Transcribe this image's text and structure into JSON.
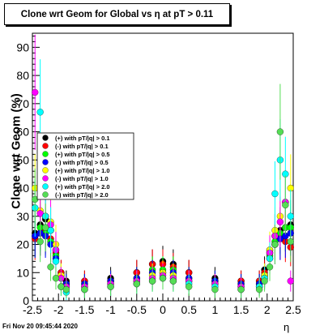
{
  "chart_data": {
    "type": "scatter",
    "title": "Clone wrt Geom for Global vs   η at pT > 0.11",
    "xlabel": "η",
    "ylabel": "Clone wrt Geom (%)",
    "xlim": [
      -2.5,
      2.5
    ],
    "ylim": [
      0,
      95
    ],
    "x_ticks": [
      "-2.5",
      "-2",
      "-1.5",
      "-1",
      "-0.5",
      "0",
      "0.5",
      "1",
      "1.5",
      "2",
      "2.5"
    ],
    "y_ticks": [
      "0",
      "10",
      "20",
      "30",
      "40",
      "50",
      "60",
      "70",
      "80",
      "90"
    ],
    "legend_position": "middle-left",
    "series": [
      {
        "name": "(+) with pT/|q| > 0.1",
        "color": "#000000",
        "x": [
          -2.45,
          -2.35,
          -2.25,
          -2.15,
          -2.05,
          -1.95,
          -1.85,
          -1.5,
          -1.0,
          -0.5,
          -0.2,
          0.0,
          0.2,
          0.5,
          1.0,
          1.5,
          1.85,
          1.95,
          2.05,
          2.15,
          2.25,
          2.35,
          2.45
        ],
        "y": [
          24,
          27,
          29,
          25,
          18,
          10,
          7,
          7,
          8,
          10,
          13,
          14,
          13,
          10,
          8,
          7,
          7,
          11,
          18,
          23,
          25,
          26,
          27
        ]
      },
      {
        "name": "(-) with pT/|q| > 0.1",
        "color": "#ff0000",
        "x": [
          -2.45,
          -2.35,
          -2.25,
          -2.15,
          -2.05,
          -1.95,
          -1.85,
          -1.5,
          -1.0,
          -0.5,
          -0.2,
          0.0,
          0.2,
          0.5,
          1.0,
          1.5,
          1.85,
          1.95,
          2.05,
          2.15,
          2.25,
          2.35,
          2.45
        ],
        "y": [
          22,
          24,
          25,
          22,
          17,
          10,
          6,
          7,
          7,
          10,
          13,
          13,
          12,
          10,
          7,
          7,
          7,
          10,
          17,
          20,
          22,
          21,
          19
        ]
      },
      {
        "name": "(+) with pT/|q| > 0.5",
        "color": "#00ff00",
        "x": [
          -2.45,
          -2.35,
          -2.25,
          -2.15,
          -2.05,
          -1.95,
          -1.85,
          -1.5,
          -1.0,
          -0.5,
          -0.2,
          0.0,
          0.2,
          0.5,
          1.0,
          1.5,
          1.85,
          1.95,
          2.05,
          2.15,
          2.25,
          2.35,
          2.45
        ],
        "y": [
          23,
          26,
          24,
          21,
          16,
          9,
          6,
          6,
          7,
          8,
          11,
          11,
          11,
          8,
          7,
          6,
          6,
          9,
          16,
          21,
          24,
          26,
          26
        ]
      },
      {
        "name": "(-) with pT/|q| > 0.5",
        "color": "#0000ff",
        "x": [
          -2.45,
          -2.35,
          -2.25,
          -2.15,
          -2.05,
          -1.95,
          -1.85,
          -1.5,
          -1.0,
          -0.5,
          -0.2,
          0.0,
          0.2,
          0.5,
          1.0,
          1.5,
          1.85,
          1.95,
          2.05,
          2.15,
          2.25,
          2.35,
          2.45
        ],
        "y": [
          23,
          24,
          23,
          20,
          15,
          8,
          6,
          6,
          7,
          8,
          10,
          10,
          10,
          8,
          7,
          6,
          6,
          9,
          15,
          20,
          22,
          23,
          24
        ]
      },
      {
        "name": "(+) with pT/|q| > 1.0",
        "color": "#ffff00",
        "x": [
          -2.45,
          -2.35,
          -2.25,
          -2.15,
          -2.05,
          -1.95,
          -1.85,
          -1.5,
          -1.0,
          -0.5,
          -0.2,
          0.0,
          0.2,
          0.5,
          1.0,
          1.5,
          1.85,
          1.95,
          2.05,
          2.15,
          2.25,
          2.35,
          2.45
        ],
        "y": [
          40,
          32,
          30,
          28,
          20,
          9,
          5,
          5,
          6,
          7,
          9,
          10,
          9,
          7,
          6,
          5,
          5,
          9,
          18,
          25,
          30,
          35,
          40
        ]
      },
      {
        "name": "(-) with pT/|q| > 1.0",
        "color": "#ff00ff",
        "x": [
          -2.45,
          -2.35,
          -2.25,
          -2.15,
          -2.05,
          -1.95,
          -1.85,
          -1.5,
          -1.0,
          -0.5,
          -0.2,
          0.0,
          0.2,
          0.5,
          1.0,
          1.5,
          1.85,
          1.95,
          2.05,
          2.15,
          2.25,
          2.35,
          2.45
        ],
        "y": [
          74,
          31,
          30,
          27,
          18,
          8,
          5,
          5,
          6,
          7,
          8,
          9,
          8,
          7,
          6,
          5,
          5,
          8,
          17,
          23,
          28,
          35,
          7
        ]
      },
      {
        "name": "(+) with pT/|q| > 2.0",
        "color": "#00ffff",
        "x": [
          -2.45,
          -2.35,
          -2.25,
          -2.15,
          -2.05,
          -1.95,
          -1.85,
          -1.5,
          -1.0,
          -0.5,
          -0.2,
          0.0,
          0.2,
          0.5,
          1.0,
          1.5,
          1.85,
          1.95,
          2.05,
          2.15,
          2.25,
          2.35,
          2.45
        ],
        "y": [
          33,
          67,
          30,
          25,
          14,
          5,
          3,
          4,
          5,
          6,
          7,
          8,
          7,
          6,
          5,
          4,
          5,
          8,
          15,
          38,
          50,
          45,
          30
        ]
      },
      {
        "name": "(-) with pT/|q| > 2.0",
        "color": "#55dd55",
        "x": [
          -2.45,
          -2.35,
          -2.25,
          -2.15,
          -2.05,
          -1.95,
          -1.85,
          -1.5,
          -1.0,
          -0.5,
          -0.2,
          0.0,
          0.2,
          0.5,
          1.0,
          1.5,
          1.85,
          1.95,
          2.05,
          2.15,
          2.25,
          2.35,
          2.45
        ],
        "y": [
          36,
          21,
          26,
          12,
          8,
          5,
          4,
          4,
          5,
          6,
          7,
          8,
          7,
          5,
          4,
          4,
          4,
          7,
          12,
          20,
          60,
          34,
          21
        ]
      }
    ]
  },
  "footer": {
    "timestamp": "Fri Nov 20 09:45:44 2020"
  }
}
